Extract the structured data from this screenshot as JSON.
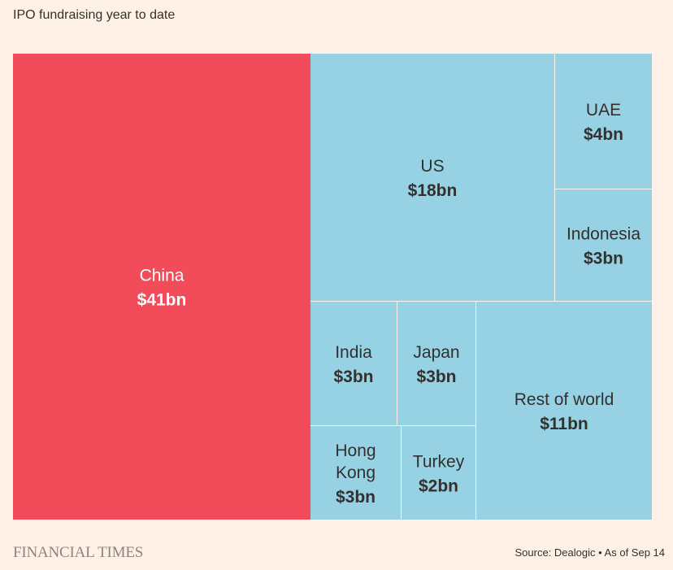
{
  "chart_data": {
    "type": "treemap",
    "title": "IPO fundraising year to date",
    "unit": "$bn",
    "colors": {
      "highlight": "#f24c5b",
      "default": "#96d1e4",
      "divider": "#fff1e5"
    },
    "items": [
      {
        "name": "China",
        "name_lines": [
          "China"
        ],
        "value": 41,
        "label": "$41bn",
        "highlight": true
      },
      {
        "name": "US",
        "name_lines": [
          "US"
        ],
        "value": 18,
        "label": "$18bn",
        "highlight": false
      },
      {
        "name": "UAE",
        "name_lines": [
          "UAE"
        ],
        "value": 4,
        "label": "$4bn",
        "highlight": false
      },
      {
        "name": "Indonesia",
        "name_lines": [
          "Indonesia"
        ],
        "value": 3,
        "label": "$3bn",
        "highlight": false
      },
      {
        "name": "India",
        "name_lines": [
          "India"
        ],
        "value": 3,
        "label": "$3bn",
        "highlight": false
      },
      {
        "name": "Japan",
        "name_lines": [
          "Japan"
        ],
        "value": 3,
        "label": "$3bn",
        "highlight": false
      },
      {
        "name": "Hong Kong",
        "name_lines": [
          "Hong",
          "Kong"
        ],
        "value": 3,
        "label": "$3bn",
        "highlight": false
      },
      {
        "name": "Turkey",
        "name_lines": [
          "Turkey"
        ],
        "value": 2,
        "label": "$2bn",
        "highlight": false
      },
      {
        "name": "Rest of world",
        "name_lines": [
          "Rest of world"
        ],
        "value": 11,
        "label": "$11bn",
        "highlight": false
      }
    ]
  },
  "footer": {
    "brand": "FINANCIAL TIMES",
    "source": "Source: Dealogic • As of Sep 14"
  }
}
